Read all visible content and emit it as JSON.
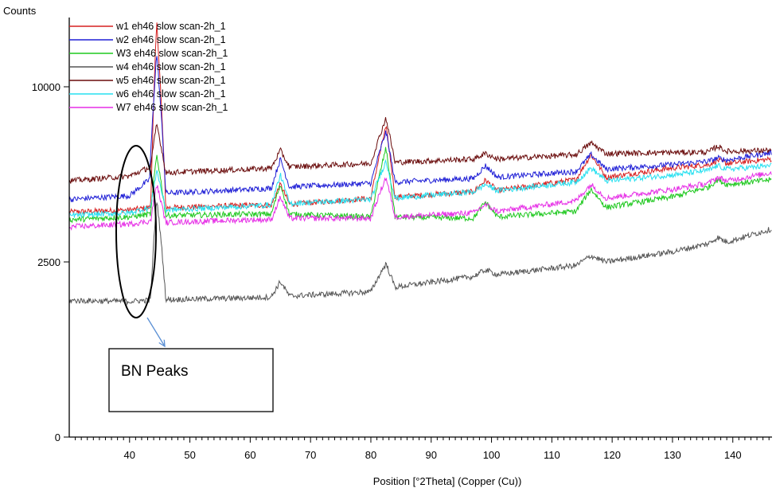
{
  "chart_data": {
    "type": "line",
    "xlabel": "Position [°2Theta] (Copper (Cu))",
    "ylabel": "Counts",
    "xlim": [
      30,
      146.5
    ],
    "x_ticks": [
      40,
      50,
      60,
      70,
      80,
      90,
      100,
      110,
      120,
      130,
      140
    ],
    "y_ticks": [
      {
        "value": 0,
        "label": "0"
      },
      {
        "value": 2500,
        "label": "2500"
      },
      {
        "value": 10000,
        "label": "10000"
      }
    ],
    "y_scale": "sqrt",
    "ylim": [
      0,
      15000
    ],
    "grid": false,
    "legend_position": "top-left",
    "series": [
      {
        "name": "w1 eh46 slow scan-2h_1",
        "color": "#d62020",
        "points": [
          [
            30,
            4130
          ],
          [
            40,
            4200
          ],
          [
            43.5,
            4300
          ],
          [
            44.5,
            14000
          ],
          [
            46,
            4290
          ],
          [
            60,
            4380
          ],
          [
            63.5,
            4380
          ],
          [
            65,
            5200
          ],
          [
            66.5,
            4420
          ],
          [
            80,
            4650
          ],
          [
            82.5,
            7850
          ],
          [
            84,
            4700
          ],
          [
            97,
            4900
          ],
          [
            99,
            5380
          ],
          [
            101,
            4950
          ],
          [
            114,
            5400
          ],
          [
            116.5,
            6500
          ],
          [
            119,
            5500
          ],
          [
            130,
            5900
          ],
          [
            136,
            6050
          ],
          [
            137.5,
            6250
          ],
          [
            139,
            6100
          ],
          [
            146.5,
            6300
          ]
        ]
      },
      {
        "name": "w2 eh46 slow scan-2h_1",
        "color": "#1f1fd6",
        "points": [
          [
            30,
            4600
          ],
          [
            40,
            4750
          ],
          [
            43.3,
            5400
          ],
          [
            44.5,
            12000
          ],
          [
            46,
            4850
          ],
          [
            60,
            5000
          ],
          [
            63.5,
            5050
          ],
          [
            65,
            6300
          ],
          [
            66.5,
            5100
          ],
          [
            80,
            5250
          ],
          [
            82.5,
            7600
          ],
          [
            84,
            5300
          ],
          [
            97,
            5450
          ],
          [
            99,
            6000
          ],
          [
            101,
            5500
          ],
          [
            114,
            5750
          ],
          [
            116.5,
            6500
          ],
          [
            119,
            5850
          ],
          [
            130,
            6050
          ],
          [
            136,
            6200
          ],
          [
            137.5,
            6350
          ],
          [
            139,
            6250
          ],
          [
            146.5,
            6600
          ]
        ]
      },
      {
        "name": "W3 eh46 slow scan-2h_1",
        "color": "#1ec81e",
        "points": [
          [
            30,
            3850
          ],
          [
            40,
            3950
          ],
          [
            43.5,
            4050
          ],
          [
            44.5,
            6500
          ],
          [
            46,
            4000
          ],
          [
            60,
            4050
          ],
          [
            63.5,
            4050
          ],
          [
            65,
            5200
          ],
          [
            66.5,
            4050
          ],
          [
            80,
            3950
          ],
          [
            82.5,
            6800
          ],
          [
            84,
            3950
          ],
          [
            97,
            3900
          ],
          [
            99,
            4500
          ],
          [
            101,
            3950
          ],
          [
            114,
            4150
          ],
          [
            116.5,
            5000
          ],
          [
            119,
            4300
          ],
          [
            130,
            4700
          ],
          [
            136,
            5100
          ],
          [
            137.5,
            5400
          ],
          [
            139,
            5200
          ],
          [
            146.5,
            5400
          ]
        ]
      },
      {
        "name": "w4 eh46 slow scan-2h_1",
        "color": "#555555",
        "points": [
          [
            30,
            1520
          ],
          [
            40,
            1500
          ],
          [
            43.5,
            1530
          ],
          [
            44.5,
            4600
          ],
          [
            46,
            1540
          ],
          [
            60,
            1580
          ],
          [
            63.5,
            1600
          ],
          [
            65,
            1970
          ],
          [
            66.5,
            1620
          ],
          [
            80,
            1720
          ],
          [
            82.5,
            2450
          ],
          [
            84,
            1830
          ],
          [
            97,
            2100
          ],
          [
            99,
            2280
          ],
          [
            101,
            2150
          ],
          [
            114,
            2400
          ],
          [
            116.5,
            2680
          ],
          [
            119,
            2500
          ],
          [
            130,
            2800
          ],
          [
            136,
            3050
          ],
          [
            137.5,
            3250
          ],
          [
            139,
            3100
          ],
          [
            146.5,
            3530
          ]
        ]
      },
      {
        "name": "w5 eh46 slow scan-2h_1",
        "color": "#6a0c0c",
        "points": [
          [
            30,
            5350
          ],
          [
            40,
            5550
          ],
          [
            43.5,
            5950
          ],
          [
            44.5,
            8000
          ],
          [
            46,
            5700
          ],
          [
            60,
            5850
          ],
          [
            63.5,
            5900
          ],
          [
            65,
            6700
          ],
          [
            66.5,
            5950
          ],
          [
            80,
            6100
          ],
          [
            82.5,
            8300
          ],
          [
            84,
            6150
          ],
          [
            97,
            6300
          ],
          [
            99,
            6550
          ],
          [
            101,
            6300
          ],
          [
            114,
            6500
          ],
          [
            116.5,
            7050
          ],
          [
            119,
            6550
          ],
          [
            130,
            6600
          ],
          [
            136,
            6620
          ],
          [
            137.5,
            6900
          ],
          [
            139,
            6650
          ],
          [
            146.5,
            6700
          ]
        ]
      },
      {
        "name": "w6 eh46 slow scan-2h_1",
        "color": "#26e0f0",
        "points": [
          [
            30,
            4000
          ],
          [
            40,
            4100
          ],
          [
            43.5,
            4300
          ],
          [
            44.5,
            5800
          ],
          [
            46,
            4200
          ],
          [
            60,
            4350
          ],
          [
            63.5,
            4400
          ],
          [
            65,
            5600
          ],
          [
            66.5,
            4450
          ],
          [
            80,
            4600
          ],
          [
            82.5,
            6200
          ],
          [
            84,
            4650
          ],
          [
            97,
            4900
          ],
          [
            99,
            5200
          ],
          [
            101,
            4950
          ],
          [
            114,
            5300
          ],
          [
            116.5,
            5900
          ],
          [
            119,
            5350
          ],
          [
            130,
            5600
          ],
          [
            136,
            5800
          ],
          [
            137.5,
            6000
          ],
          [
            139,
            5850
          ],
          [
            146.5,
            6000
          ]
        ]
      },
      {
        "name": "W7 eh46 slow scan-2h_1",
        "color": "#e62ee6",
        "points": [
          [
            30,
            3600
          ],
          [
            40,
            3700
          ],
          [
            43.5,
            3800
          ],
          [
            44.5,
            5200
          ],
          [
            46,
            3750
          ],
          [
            60,
            3850
          ],
          [
            63.5,
            3850
          ],
          [
            65,
            4700
          ],
          [
            66.5,
            3900
          ],
          [
            80,
            3900
          ],
          [
            82.5,
            5500
          ],
          [
            84,
            3950
          ],
          [
            97,
            4100
          ],
          [
            99,
            4400
          ],
          [
            101,
            4150
          ],
          [
            114,
            4550
          ],
          [
            116.5,
            5200
          ],
          [
            119,
            4650
          ],
          [
            130,
            5000
          ],
          [
            136,
            5250
          ],
          [
            137.5,
            5500
          ],
          [
            139,
            5350
          ],
          [
            146.5,
            5700
          ]
        ]
      }
    ],
    "annotations": [
      {
        "text": "BN Peaks"
      }
    ]
  }
}
